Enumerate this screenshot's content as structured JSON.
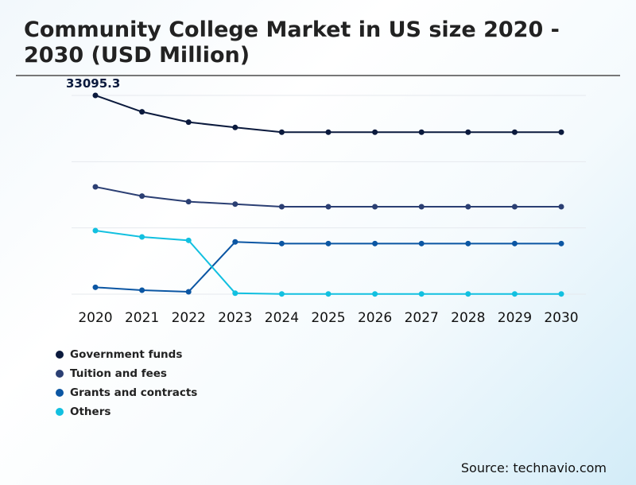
{
  "chart_data": {
    "type": "line",
    "title": "Community College Market in US size 2020 - 2030 (USD Million)",
    "categories": [
      "2020",
      "2021",
      "2022",
      "2023",
      "2024",
      "2025",
      "2026",
      "2027",
      "2028",
      "2029",
      "2030"
    ],
    "ylim": [
      0,
      33095.3
    ],
    "grid": true,
    "legend_placement": "bottom-left",
    "annotations": [
      {
        "label": "33095.3",
        "series": "Government funds",
        "x": "2020"
      }
    ],
    "series": [
      {
        "name": "Government funds",
        "color": "#0b1a3d",
        "values": [
          33095.3,
          30360,
          28640,
          27760,
          26970,
          26970,
          26970,
          26970,
          26970,
          26970,
          26970
        ]
      },
      {
        "name": "Tuition and fees",
        "color": "#2b3f73",
        "values": [
          17870,
          16330,
          15400,
          15000,
          14560,
          14560,
          14560,
          14560,
          14560,
          14560,
          14560
        ]
      },
      {
        "name": "Grants and contracts",
        "color": "#0b56a3",
        "values": [
          1150,
          660,
          400,
          8700,
          8430,
          8430,
          8430,
          8430,
          8430,
          8430,
          8430
        ]
      },
      {
        "name": "Others",
        "color": "#12c0e0",
        "values": [
          10590,
          9530,
          8960,
          170,
          40,
          40,
          40,
          40,
          40,
          40,
          40
        ]
      }
    ]
  },
  "source": "Source: technavio.com"
}
